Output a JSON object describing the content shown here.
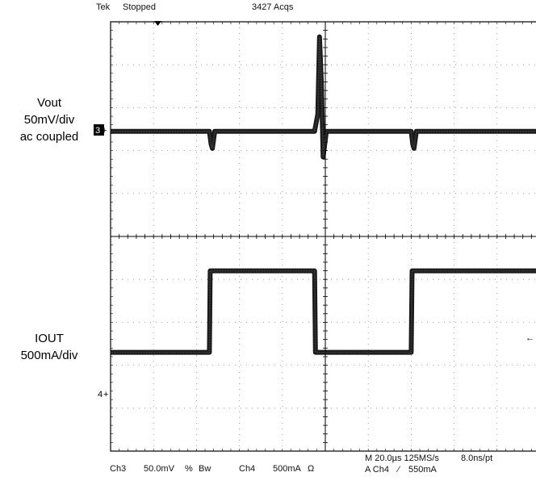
{
  "header": {
    "brand": "Tek",
    "state": "Stopped",
    "acqs": "3427 Acqs"
  },
  "channels": [
    {
      "marker": "3",
      "lines": [
        "Vout",
        "50mV/div",
        "ac coupled"
      ]
    },
    {
      "marker": "4",
      "lines": [
        "IOUT",
        "500mA/div"
      ]
    }
  ],
  "footer": {
    "ch3_name": "Ch3",
    "ch3_scale": "50.0mV",
    "ch3_coupling_symbol": "%",
    "ch3_bw": "Bw",
    "ch4_name": "Ch4",
    "ch4_scale": "500mA",
    "ch4_termination": "Ω",
    "timebase": "M 20.0µs 125MS/s",
    "resolution": "8.0ns/pt",
    "trigger": "A Ch4",
    "trigger_slope": "⁄",
    "trigger_level": "550mA"
  },
  "chart_data": {
    "type": "line",
    "title": "",
    "xlabel": "",
    "ylabel": "",
    "grid": true,
    "x_unit": "µs",
    "x_per_div": 20,
    "xlim": [
      0,
      200
    ],
    "series": [
      {
        "name": "Vout",
        "unit": "mV",
        "scale_per_div": 50,
        "x": [
          0,
          46,
          46.8,
          47.4,
          48.5,
          95,
          96.5,
          97.3,
          98.2,
          99.0,
          100.5,
          140,
          140.7,
          141.3,
          142.4,
          200
        ],
        "y": [
          0,
          0,
          -15,
          -20,
          0,
          0,
          20,
          110,
          55,
          -30,
          0,
          0,
          -15,
          -20,
          0,
          0
        ]
      },
      {
        "name": "IOUT",
        "unit": "mA",
        "scale_per_div": 500,
        "x": [
          0,
          46,
          46.4,
          95,
          95.4,
          140,
          140.4,
          200
        ],
        "y": [
          0,
          0,
          950,
          950,
          0,
          0,
          950,
          950
        ]
      }
    ]
  }
}
